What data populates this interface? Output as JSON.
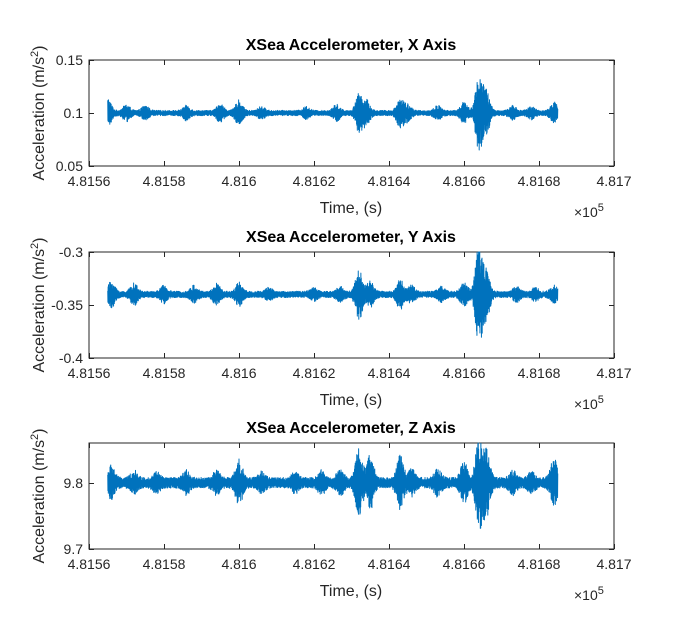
{
  "chart_data": [
    {
      "type": "line",
      "title": "XSea Accelerometer, X Axis",
      "xlabel": "Time, (s)",
      "ylabel": "Acceleration (m/s",
      "ylabel_sup": "2",
      "ylabel_close": ")",
      "x_multiplier": {
        "base": "×10",
        "exponent": "5"
      },
      "xlim": [
        4.8156,
        4.817
      ],
      "ylim": [
        0.05,
        0.15
      ],
      "xticks": [
        4.8156,
        4.8158,
        4.816,
        4.8162,
        4.8164,
        4.8166,
        4.8168,
        4.817
      ],
      "xtick_labels": [
        "4.8156",
        "4.8158",
        "4.816",
        "4.8162",
        "4.8164",
        "4.8166",
        "4.8168",
        "4.817"
      ],
      "yticks": [
        0.05,
        0.1,
        0.15
      ],
      "ytick_labels": [
        "0.05",
        "0.1",
        "0.15"
      ],
      "grid": false,
      "color": "#0072BD",
      "series": [
        {
          "x_range": [
            4.81565,
            4.81685
          ],
          "baseline": 0.1,
          "noise_amplitude": 0.0025,
          "bursts": [
            {
              "x": 4.81565,
              "amplitude": 0.012
            },
            {
              "x": 4.8157,
              "amplitude": 0.006
            },
            {
              "x": 4.81575,
              "amplitude": 0.005
            },
            {
              "x": 4.81586,
              "amplitude": 0.005
            },
            {
              "x": 4.81595,
              "amplitude": 0.007
            },
            {
              "x": 4.816,
              "amplitude": 0.01
            },
            {
              "x": 4.81606,
              "amplitude": 0.004
            },
            {
              "x": 4.81618,
              "amplitude": 0.004
            },
            {
              "x": 4.81626,
              "amplitude": 0.006
            },
            {
              "x": 4.81632,
              "amplitude": 0.016
            },
            {
              "x": 4.81634,
              "amplitude": 0.01
            },
            {
              "x": 4.81643,
              "amplitude": 0.012
            },
            {
              "x": 4.81645,
              "amplitude": 0.006
            },
            {
              "x": 4.81653,
              "amplitude": 0.005
            },
            {
              "x": 4.8166,
              "amplitude": 0.008
            },
            {
              "x": 4.81664,
              "amplitude": 0.035
            },
            {
              "x": 4.81666,
              "amplitude": 0.018
            },
            {
              "x": 4.81673,
              "amplitude": 0.005
            },
            {
              "x": 4.81678,
              "amplitude": 0.004
            },
            {
              "x": 4.81684,
              "amplitude": 0.008
            }
          ]
        }
      ]
    },
    {
      "type": "line",
      "title": "XSea Accelerometer, Y Axis",
      "xlabel": "Time, (s)",
      "ylabel": "Acceleration (m/s",
      "ylabel_sup": "2",
      "ylabel_close": ")",
      "x_multiplier": {
        "base": "×10",
        "exponent": "5"
      },
      "xlim": [
        4.8156,
        4.817
      ],
      "ylim": [
        -0.4,
        -0.3
      ],
      "xticks": [
        4.8156,
        4.8158,
        4.816,
        4.8162,
        4.8164,
        4.8166,
        4.8168,
        4.817
      ],
      "xtick_labels": [
        "4.8156",
        "4.8158",
        "4.816",
        "4.8162",
        "4.8164",
        "4.8166",
        "4.8168",
        "4.817"
      ],
      "yticks": [
        -0.4,
        -0.35,
        -0.3
      ],
      "ytick_labels": [
        "-0.4",
        "-0.35",
        "-0.3"
      ],
      "grid": false,
      "color": "#0072BD",
      "series": [
        {
          "x_range": [
            4.81565,
            4.81685
          ],
          "baseline": -0.34,
          "noise_amplitude": 0.003,
          "bursts": [
            {
              "x": 4.81566,
              "amplitude": 0.01
            },
            {
              "x": 4.81572,
              "amplitude": 0.008
            },
            {
              "x": 4.8158,
              "amplitude": 0.006
            },
            {
              "x": 4.81588,
              "amplitude": 0.006
            },
            {
              "x": 4.81594,
              "amplitude": 0.008
            },
            {
              "x": 4.816,
              "amplitude": 0.009
            },
            {
              "x": 4.81608,
              "amplitude": 0.004
            },
            {
              "x": 4.8162,
              "amplitude": 0.004
            },
            {
              "x": 4.81627,
              "amplitude": 0.005
            },
            {
              "x": 4.81632,
              "amplitude": 0.022
            },
            {
              "x": 4.81635,
              "amplitude": 0.01
            },
            {
              "x": 4.81643,
              "amplitude": 0.012
            },
            {
              "x": 4.81646,
              "amplitude": 0.006
            },
            {
              "x": 4.81654,
              "amplitude": 0.005
            },
            {
              "x": 4.8166,
              "amplitude": 0.009
            },
            {
              "x": 4.81664,
              "amplitude": 0.045
            },
            {
              "x": 4.81666,
              "amplitude": 0.02
            },
            {
              "x": 4.81674,
              "amplitude": 0.005
            },
            {
              "x": 4.81679,
              "amplitude": 0.004
            },
            {
              "x": 4.81684,
              "amplitude": 0.006
            }
          ]
        }
      ]
    },
    {
      "type": "line",
      "title": "XSea Accelerometer, Z Axis",
      "xlabel": "Time, (s)",
      "ylabel": "Acceleration (m/s",
      "ylabel_sup": "2",
      "ylabel_close": ")",
      "x_multiplier": {
        "base": "×10",
        "exponent": "5"
      },
      "xlim": [
        4.8156,
        4.817
      ],
      "ylim": [
        9.7,
        9.86
      ],
      "xticks": [
        4.8156,
        4.8158,
        4.816,
        4.8162,
        4.8164,
        4.8166,
        4.8168,
        4.817
      ],
      "xtick_labels": [
        "4.8156",
        "4.8158",
        "4.816",
        "4.8162",
        "4.8164",
        "4.8166",
        "4.8168",
        "4.817"
      ],
      "yticks": [
        9.7,
        9.8
      ],
      "ytick_labels": [
        "9.7",
        "9.8"
      ],
      "grid": false,
      "color": "#0072BD",
      "series": [
        {
          "x_range": [
            4.81565,
            4.81685
          ],
          "baseline": 9.8,
          "noise_amplitude": 0.008,
          "bursts": [
            {
              "x": 4.81566,
              "amplitude": 0.02
            },
            {
              "x": 4.81572,
              "amplitude": 0.012
            },
            {
              "x": 4.81578,
              "amplitude": 0.01
            },
            {
              "x": 4.81586,
              "amplitude": 0.012
            },
            {
              "x": 4.81594,
              "amplitude": 0.012
            },
            {
              "x": 4.816,
              "amplitude": 0.03
            },
            {
              "x": 4.81606,
              "amplitude": 0.01
            },
            {
              "x": 4.81615,
              "amplitude": 0.01
            },
            {
              "x": 4.81622,
              "amplitude": 0.012
            },
            {
              "x": 4.81627,
              "amplitude": 0.014
            },
            {
              "x": 4.81632,
              "amplitude": 0.045
            },
            {
              "x": 4.81635,
              "amplitude": 0.035
            },
            {
              "x": 4.81643,
              "amplitude": 0.035
            },
            {
              "x": 4.81646,
              "amplitude": 0.015
            },
            {
              "x": 4.81653,
              "amplitude": 0.015
            },
            {
              "x": 4.8166,
              "amplitude": 0.025
            },
            {
              "x": 4.81664,
              "amplitude": 0.06
            },
            {
              "x": 4.81666,
              "amplitude": 0.045
            },
            {
              "x": 4.81673,
              "amplitude": 0.012
            },
            {
              "x": 4.81678,
              "amplitude": 0.01
            },
            {
              "x": 4.81684,
              "amplitude": 0.03
            }
          ]
        }
      ]
    }
  ]
}
